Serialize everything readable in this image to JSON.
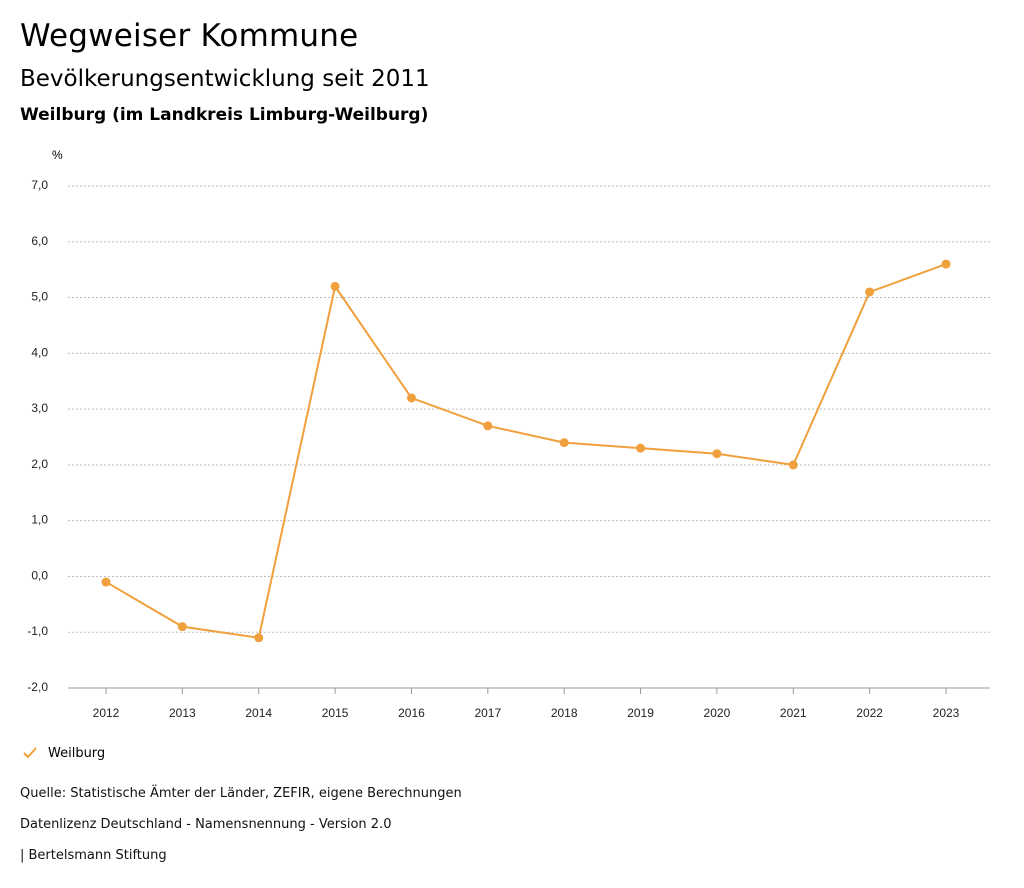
{
  "header": {
    "title": "Wegweiser Kommune",
    "subtitle": "Bevölkerungsentwicklung seit 2011",
    "region": "Weilburg (im Landkreis Limburg-Weilburg)"
  },
  "chart_data": {
    "type": "line",
    "ylabel": "%",
    "ylim": [
      -2.0,
      7.0
    ],
    "yticks": [
      "7,0",
      "6,0",
      "5,0",
      "4,0",
      "3,0",
      "2,0",
      "1,0",
      "0,0",
      "-1,0",
      "-2,0"
    ],
    "grid": true,
    "legend_placement": "bottom-left",
    "categories": [
      "2012",
      "2013",
      "2014",
      "2015",
      "2016",
      "2017",
      "2018",
      "2019",
      "2020",
      "2021",
      "2022",
      "2023"
    ],
    "series": [
      {
        "name": "Weilburg",
        "color": "#f0a03c",
        "values": [
          -0.1,
          -0.9,
          -1.1,
          5.2,
          3.2,
          2.7,
          2.4,
          2.3,
          2.2,
          2.0,
          5.1,
          5.6
        ]
      }
    ]
  },
  "legend": {
    "label": "Weilburg",
    "icon": "check-icon",
    "color": "#f0a03c"
  },
  "footer": {
    "source": "Quelle: Statistische Ämter der Länder, ZEFIR, eigene Berechnungen",
    "license": "Datenlizenz Deutschland - Namensnennung - Version 2.0",
    "publisher": "| Bertelsmann Stiftung"
  }
}
